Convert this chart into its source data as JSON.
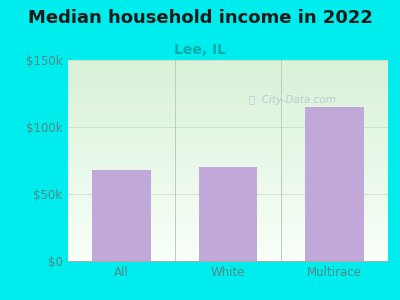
{
  "title": "Median household income in 2022",
  "subtitle": "Lee, IL",
  "categories": [
    "All",
    "White",
    "Multirace"
  ],
  "values": [
    68000,
    70000,
    115000
  ],
  "bar_color": "#c0a8d8",
  "background_color": "#00eded",
  "plot_bg_top": "#d8f0d8",
  "plot_bg_bottom": "#f8fff8",
  "title_color": "#1a1a1a",
  "subtitle_color": "#00aaaa",
  "tick_label_color": "#558888",
  "ylim": [
    0,
    150000
  ],
  "yticks": [
    0,
    50000,
    100000,
    150000
  ],
  "ytick_labels": [
    "$0",
    "$50k",
    "$100k",
    "$150k"
  ],
  "watermark": "City-Data.com",
  "title_fontsize": 13,
  "subtitle_fontsize": 10,
  "tick_fontsize": 8.5
}
